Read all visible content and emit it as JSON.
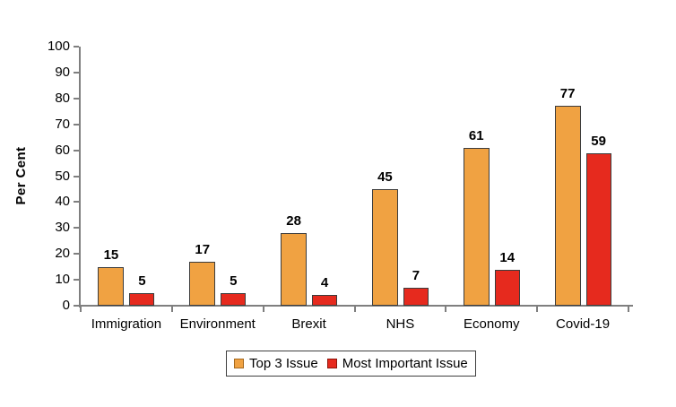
{
  "chart_data": {
    "type": "bar",
    "title": "",
    "categories": [
      "Immigration",
      "Environment",
      "Brexit",
      "NHS",
      "Economy",
      "Covid-19"
    ],
    "series": [
      {
        "name": "Top 3 Issue",
        "values": [
          15,
          17,
          28,
          45,
          61,
          77
        ],
        "color": "#F0A242",
        "swatch_border": "#A5691E"
      },
      {
        "name": "Most Important Issue",
        "values": [
          5,
          5,
          4,
          7,
          14,
          59
        ],
        "color": "#E62A1E",
        "swatch_border": "#8E150C"
      }
    ],
    "xlabel": "",
    "ylabel": "Per Cent",
    "ylim": [
      0,
      100
    ],
    "ytick_step": 10,
    "ytick_labels": [
      "0",
      "10",
      "20",
      "30",
      "40",
      "50",
      "60",
      "70",
      "80",
      "90",
      "100"
    ],
    "grid": false,
    "value_labels": true,
    "legend_position": "bottom"
  },
  "colors": {
    "background": "#FFFFFF",
    "axis": "#7F7F7F",
    "bar_border": "#3C3C3C",
    "legend_border": "#3F3F3F",
    "text": "#000000"
  }
}
